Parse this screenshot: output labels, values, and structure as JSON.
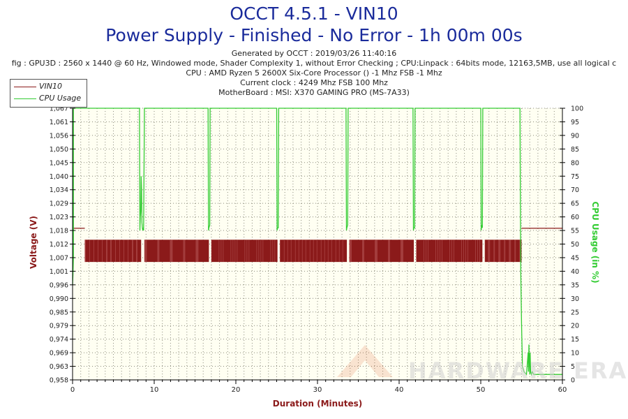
{
  "title_line1": "OCCT 4.5.1 - VIN10",
  "title_line2": "Power Supply - Finished - No Error - 1h 00m 00s",
  "info_lines": [
    "Generated by OCCT : 2019/03/26 11:40:16",
    "fig : GPU3D : 2560 x 1440 @ 60 Hz, Windowed mode, Shader Complexity 1, without Error Checking ; CPU:Linpack : 64bits mode, 12163,5MB, use all logical c",
    "CPU : AMD Ryzen 5 2600X Six-Core Processor () -1 Mhz FSB -1 Mhz",
    "Current clock : 4249 Mhz FSB 100 Mhz",
    "MotherBoard : MSI: X370 GAMING PRO (MS-7A33)"
  ],
  "watermark": "HARDWARE ERA",
  "colors": {
    "title": "#1a2b9b",
    "voltage": "#8b1a1a",
    "cpu": "#33cc33",
    "plot_bg": "#fffff2",
    "grid": "#8a8a7a"
  },
  "chart_data": {
    "type": "line",
    "xlabel": "Duration (Minutes)",
    "ylabel_left": "Voltage (V)",
    "ylabel_right": "CPU Usage (in %)",
    "xlim": [
      0,
      60
    ],
    "x_ticks": [
      "0",
      "10",
      "20",
      "30",
      "40",
      "50",
      "60"
    ],
    "ylim_left": [
      0.958,
      1.067
    ],
    "y_ticks_left": [
      "0,958",
      "0,963",
      "0,969",
      "0,974",
      "0,979",
      "0,985",
      "0,990",
      "0,996",
      "1,001",
      "1,007",
      "1,012",
      "1,018",
      "1,023",
      "1,029",
      "1,034",
      "1,040",
      "1,045",
      "1,050",
      "1,056",
      "1,061",
      "1,067"
    ],
    "ylim_right": [
      0,
      100
    ],
    "y_ticks_right": [
      "0",
      "5",
      "10",
      "15",
      "20",
      "25",
      "30",
      "35",
      "40",
      "45",
      "50",
      "55",
      "60",
      "65",
      "70",
      "75",
      "80",
      "85",
      "90",
      "95",
      "100"
    ],
    "grid": true,
    "legend": {
      "position": "top-left",
      "entries": [
        "VIN10",
        "CPU Usage"
      ]
    },
    "series": [
      {
        "name": "VIN10",
        "axis": "left",
        "style": "band",
        "band_low": 1.007,
        "band_high": 1.012,
        "segments": [
          [
            1.5,
            8.4
          ],
          [
            8.8,
            16.7
          ],
          [
            17.0,
            25.1
          ],
          [
            25.4,
            33.6
          ],
          [
            33.9,
            41.8
          ],
          [
            42.1,
            50.2
          ],
          [
            50.5,
            55.0
          ]
        ],
        "after": {
          "from": 55.0,
          "to": 60.0,
          "value": 1.018
        }
      },
      {
        "name": "CPU Usage",
        "axis": "right",
        "x": [
          0,
          0.05,
          0.1,
          0.1,
          8.2,
          8.25,
          8.3,
          8.35,
          8.4,
          8.45,
          8.5,
          8.55,
          8.6,
          8.65,
          8.7,
          8.8,
          8.85,
          16.6,
          16.65,
          16.7,
          16.8,
          16.85,
          25.0,
          25.05,
          25.1,
          25.2,
          25.25,
          33.5,
          33.55,
          33.6,
          33.7,
          33.75,
          41.7,
          41.75,
          41.8,
          41.9,
          41.95,
          50.0,
          50.05,
          50.1,
          50.2,
          50.25,
          54.8,
          54.85,
          54.9,
          55.0,
          55.1,
          55.3,
          55.6,
          55.8,
          55.85,
          55.9,
          56.0,
          56.05,
          56.1,
          56.2,
          56.3,
          56.5,
          57.0,
          58.0,
          59.0,
          60.0
        ],
        "y": [
          35,
          39,
          45,
          100,
          100,
          55,
          60,
          62,
          75,
          70,
          58,
          56,
          55,
          56,
          55,
          100,
          100,
          100,
          55,
          56,
          57,
          100,
          100,
          55,
          56,
          56,
          100,
          100,
          55,
          56,
          57,
          100,
          100,
          55,
          56,
          56,
          100,
          100,
          55,
          57,
          56,
          100,
          100,
          70,
          40,
          20,
          5,
          3,
          2,
          10,
          3,
          13,
          2,
          10,
          3,
          2,
          3,
          2,
          2,
          2,
          2,
          2
        ]
      }
    ]
  }
}
